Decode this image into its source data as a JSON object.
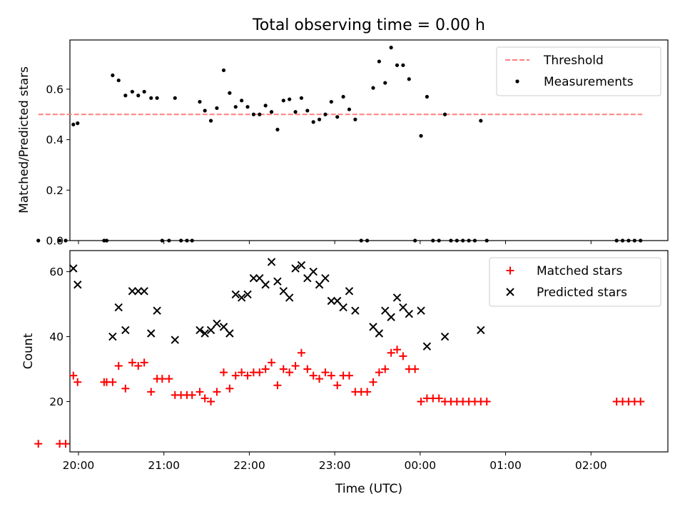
{
  "chart_data": {
    "title": "Total observing time = 0.00 h",
    "xlabel": "Time (UTC)",
    "x_unit": "hours since 00:00 UTC (negative = previous evening)",
    "xlim": [
      -4.1,
      2.9
    ],
    "x_ticks": [
      {
        "value": -4,
        "label": "20:00"
      },
      {
        "value": -3,
        "label": "21:00"
      },
      {
        "value": -2,
        "label": "22:00"
      },
      {
        "value": -1,
        "label": "23:00"
      },
      {
        "value": 0,
        "label": "00:00"
      },
      {
        "value": 1,
        "label": "01:00"
      },
      {
        "value": 2,
        "label": "02:00"
      }
    ],
    "panels": [
      {
        "type": "scatter",
        "ylabel": "Matched/Predicted stars",
        "ylim": [
          0,
          0.795
        ],
        "y_ticks": [
          0.0,
          0.2,
          0.4,
          0.6
        ],
        "y_tick_labels": [
          "0.0",
          "0.2",
          "0.4",
          "0.6"
        ],
        "grid": false,
        "legend_position": "upper-right",
        "series": [
          {
            "name": "Threshold",
            "kind": "dashed-line",
            "color": "#ff7f7f",
            "points": [
              [
                -4.47,
                0.5
              ],
              [
                2.6,
                0.5
              ]
            ]
          },
          {
            "name": "Measurements",
            "kind": "dot",
            "color": "#000000",
            "points": [
              [
                -4.47,
                0.0
              ],
              [
                -4.22,
                0.0
              ],
              [
                -4.15,
                0.0
              ],
              [
                -4.06,
                0.46
              ],
              [
                -4.01,
                0.465
              ],
              [
                -3.7,
                0.0
              ],
              [
                -3.67,
                0.0
              ],
              [
                -3.6,
                0.655
              ],
              [
                -3.53,
                0.635
              ],
              [
                -3.45,
                0.575
              ],
              [
                -3.37,
                0.59
              ],
              [
                -3.3,
                0.575
              ],
              [
                -3.23,
                0.59
              ],
              [
                -3.15,
                0.565
              ],
              [
                -3.08,
                0.565
              ],
              [
                -3.02,
                0.0
              ],
              [
                -2.94,
                0.0
              ],
              [
                -2.87,
                0.565
              ],
              [
                -2.8,
                0.0
              ],
              [
                -2.73,
                0.0
              ],
              [
                -2.67,
                0.0
              ],
              [
                -2.58,
                0.55
              ],
              [
                -2.52,
                0.515
              ],
              [
                -2.45,
                0.475
              ],
              [
                -2.38,
                0.525
              ],
              [
                -2.3,
                0.675
              ],
              [
                -2.23,
                0.585
              ],
              [
                -2.16,
                0.53
              ],
              [
                -2.09,
                0.555
              ],
              [
                -2.02,
                0.53
              ],
              [
                -1.95,
                0.5
              ],
              [
                -1.88,
                0.5
              ],
              [
                -1.81,
                0.535
              ],
              [
                -1.74,
                0.51
              ],
              [
                -1.67,
                0.44
              ],
              [
                -1.6,
                0.555
              ],
              [
                -1.53,
                0.56
              ],
              [
                -1.46,
                0.51
              ],
              [
                -1.39,
                0.565
              ],
              [
                -1.32,
                0.515
              ],
              [
                -1.25,
                0.47
              ],
              [
                -1.18,
                0.48
              ],
              [
                -1.11,
                0.5
              ],
              [
                -1.04,
                0.55
              ],
              [
                -0.97,
                0.49
              ],
              [
                -0.9,
                0.57
              ],
              [
                -0.83,
                0.52
              ],
              [
                -0.76,
                0.48
              ],
              [
                -0.69,
                0.0
              ],
              [
                -0.62,
                0.0
              ],
              [
                -0.55,
                0.605
              ],
              [
                -0.48,
                0.71
              ],
              [
                -0.41,
                0.625
              ],
              [
                -0.34,
                0.765
              ],
              [
                -0.27,
                0.695
              ],
              [
                -0.2,
                0.695
              ],
              [
                -0.13,
                0.64
              ],
              [
                -0.06,
                0.0
              ],
              [
                0.01,
                0.415
              ],
              [
                0.08,
                0.57
              ],
              [
                0.15,
                0.0
              ],
              [
                0.22,
                0.0
              ],
              [
                0.29,
                0.5
              ],
              [
                0.36,
                0.0
              ],
              [
                0.43,
                0.0
              ],
              [
                0.5,
                0.0
              ],
              [
                0.57,
                0.0
              ],
              [
                0.64,
                0.0
              ],
              [
                0.71,
                0.475
              ],
              [
                0.78,
                0.0
              ],
              [
                2.3,
                0.0
              ],
              [
                2.37,
                0.0
              ],
              [
                2.44,
                0.0
              ],
              [
                2.51,
                0.0
              ],
              [
                2.58,
                0.0
              ]
            ]
          }
        ],
        "legend": [
          "Threshold",
          "Measurements"
        ]
      },
      {
        "type": "scatter",
        "ylabel": "Count",
        "ylim": [
          4.5,
          66.5
        ],
        "y_ticks": [
          20,
          40,
          60
        ],
        "y_tick_labels": [
          "20",
          "40",
          "60"
        ],
        "grid": false,
        "legend_position": "upper-right",
        "series": [
          {
            "name": "Matched stars",
            "kind": "plus",
            "color": "#ff0000",
            "points": [
              [
                -4.47,
                7
              ],
              [
                -4.22,
                7
              ],
              [
                -4.15,
                7
              ],
              [
                -4.06,
                28
              ],
              [
                -4.01,
                26
              ],
              [
                -3.7,
                26
              ],
              [
                -3.67,
                26
              ],
              [
                -3.6,
                26
              ],
              [
                -3.53,
                31
              ],
              [
                -3.45,
                24
              ],
              [
                -3.37,
                32
              ],
              [
                -3.3,
                31
              ],
              [
                -3.23,
                32
              ],
              [
                -3.15,
                23
              ],
              [
                -3.08,
                27
              ],
              [
                -3.02,
                27
              ],
              [
                -2.94,
                27
              ],
              [
                -2.87,
                22
              ],
              [
                -2.8,
                22
              ],
              [
                -2.73,
                22
              ],
              [
                -2.67,
                22
              ],
              [
                -2.58,
                23
              ],
              [
                -2.52,
                21
              ],
              [
                -2.45,
                20
              ],
              [
                -2.38,
                23
              ],
              [
                -2.3,
                29
              ],
              [
                -2.23,
                24
              ],
              [
                -2.16,
                28
              ],
              [
                -2.09,
                29
              ],
              [
                -2.02,
                28
              ],
              [
                -1.95,
                29
              ],
              [
                -1.88,
                29
              ],
              [
                -1.81,
                30
              ],
              [
                -1.74,
                32
              ],
              [
                -1.67,
                25
              ],
              [
                -1.6,
                30
              ],
              [
                -1.53,
                29
              ],
              [
                -1.46,
                31
              ],
              [
                -1.39,
                35
              ],
              [
                -1.32,
                30
              ],
              [
                -1.25,
                28
              ],
              [
                -1.18,
                27
              ],
              [
                -1.11,
                29
              ],
              [
                -1.04,
                28
              ],
              [
                -0.97,
                25
              ],
              [
                -0.9,
                28
              ],
              [
                -0.83,
                28
              ],
              [
                -0.76,
                23
              ],
              [
                -0.69,
                23
              ],
              [
                -0.62,
                23
              ],
              [
                -0.55,
                26
              ],
              [
                -0.48,
                29
              ],
              [
                -0.41,
                30
              ],
              [
                -0.34,
                35
              ],
              [
                -0.27,
                36
              ],
              [
                -0.2,
                34
              ],
              [
                -0.13,
                30
              ],
              [
                -0.06,
                30
              ],
              [
                0.01,
                20
              ],
              [
                0.08,
                21
              ],
              [
                0.15,
                21
              ],
              [
                0.22,
                21
              ],
              [
                0.29,
                20
              ],
              [
                0.36,
                20
              ],
              [
                0.43,
                20
              ],
              [
                0.5,
                20
              ],
              [
                0.57,
                20
              ],
              [
                0.64,
                20
              ],
              [
                0.71,
                20
              ],
              [
                0.78,
                20
              ],
              [
                2.3,
                20
              ],
              [
                2.37,
                20
              ],
              [
                2.44,
                20
              ],
              [
                2.51,
                20
              ],
              [
                2.58,
                20
              ]
            ]
          },
          {
            "name": "Predicted stars",
            "kind": "x",
            "color": "#000000",
            "points": [
              [
                -4.06,
                61
              ],
              [
                -4.01,
                56
              ],
              [
                -3.6,
                40
              ],
              [
                -3.53,
                49
              ],
              [
                -3.45,
                42
              ],
              [
                -3.37,
                54
              ],
              [
                -3.3,
                54
              ],
              [
                -3.23,
                54
              ],
              [
                -3.15,
                41
              ],
              [
                -3.08,
                48
              ],
              [
                -2.87,
                39
              ],
              [
                -2.58,
                42
              ],
              [
                -2.52,
                41
              ],
              [
                -2.45,
                42
              ],
              [
                -2.38,
                44
              ],
              [
                -2.3,
                43
              ],
              [
                -2.23,
                41
              ],
              [
                -2.16,
                53
              ],
              [
                -2.09,
                52
              ],
              [
                -2.02,
                53
              ],
              [
                -1.95,
                58
              ],
              [
                -1.88,
                58
              ],
              [
                -1.81,
                56
              ],
              [
                -1.74,
                63
              ],
              [
                -1.67,
                57
              ],
              [
                -1.6,
                54
              ],
              [
                -1.53,
                52
              ],
              [
                -1.46,
                61
              ],
              [
                -1.39,
                62
              ],
              [
                -1.32,
                58
              ],
              [
                -1.25,
                60
              ],
              [
                -1.18,
                56
              ],
              [
                -1.11,
                58
              ],
              [
                -1.04,
                51
              ],
              [
                -0.97,
                51
              ],
              [
                -0.9,
                49
              ],
              [
                -0.83,
                54
              ],
              [
                -0.76,
                48
              ],
              [
                -0.55,
                43
              ],
              [
                -0.48,
                41
              ],
              [
                -0.41,
                48
              ],
              [
                -0.34,
                46
              ],
              [
                -0.27,
                52
              ],
              [
                -0.2,
                49
              ],
              [
                -0.13,
                47
              ],
              [
                0.01,
                48
              ],
              [
                0.08,
                37
              ],
              [
                0.29,
                40
              ],
              [
                0.71,
                42
              ]
            ]
          }
        ],
        "legend": [
          "Matched stars",
          "Predicted stars"
        ]
      }
    ]
  }
}
